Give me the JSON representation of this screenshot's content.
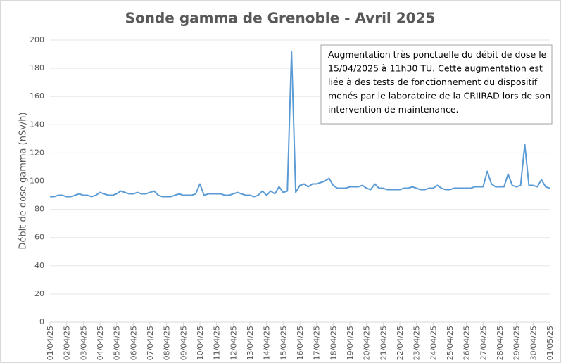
{
  "chart_data": {
    "type": "line",
    "title": "Sonde gamma de Grenoble - Avril 2025",
    "y_label": "Débit de dose gamma (nSv/h)",
    "annotation": [
      "Augmentation très ponctuelle du débit de dose le",
      "15/04/2025  à 11h30 TU. Cette augmentation est",
      "liée à des tests de fonctionnement du dispositif",
      "menés par le laboratoire de la CRIIRAD lors de son",
      "intervention de maintenance."
    ],
    "categories": [
      "01/04/25",
      null,
      null,
      null,
      "02/04/25",
      null,
      null,
      null,
      "03/04/25",
      null,
      null,
      null,
      "04/04/25",
      null,
      null,
      null,
      "05/04/25",
      null,
      null,
      null,
      "06/04/25",
      null,
      null,
      null,
      "07/04/25",
      null,
      null,
      null,
      "08/04/25",
      null,
      null,
      null,
      "09/04/25",
      null,
      null,
      null,
      "10/04/25",
      null,
      null,
      null,
      "11/04/25",
      null,
      null,
      null,
      "12/04/25",
      null,
      null,
      null,
      "13/04/25",
      null,
      null,
      null,
      "14/04/25",
      null,
      null,
      null,
      "15/04/25",
      null,
      null,
      null,
      "16/04/25",
      null,
      null,
      null,
      "17/04/25",
      null,
      null,
      null,
      "18/04/25",
      null,
      null,
      null,
      "19/04/25",
      null,
      null,
      null,
      "20/04/25",
      null,
      null,
      null,
      "21/04/25",
      null,
      null,
      null,
      "22/04/25",
      null,
      null,
      null,
      "23/04/25",
      null,
      null,
      null,
      "24/04/25",
      null,
      null,
      null,
      "25/04/25",
      null,
      null,
      null,
      "26/04/25",
      null,
      null,
      null,
      "27/04/25",
      null,
      null,
      null,
      "28/04/25",
      null,
      null,
      null,
      "29/04/25",
      null,
      null,
      null,
      "30/04/25",
      null,
      null,
      null,
      "01/05/25"
    ],
    "values": [
      89,
      89,
      90,
      90,
      89,
      89,
      90,
      91,
      90,
      90,
      89,
      90,
      92,
      91,
      90,
      90,
      91,
      93,
      92,
      91,
      91,
      92,
      91,
      91,
      92,
      93,
      90,
      89,
      89,
      89,
      90,
      91,
      90,
      90,
      90,
      91,
      98,
      90,
      91,
      91,
      91,
      91,
      90,
      90,
      91,
      92,
      91,
      90,
      90,
      89,
      90,
      93,
      90,
      93,
      91,
      96,
      92,
      93,
      192,
      92,
      97,
      98,
      96,
      98,
      98,
      99,
      100,
      102,
      97,
      95,
      95,
      95,
      96,
      96,
      96,
      97,
      95,
      94,
      98,
      95,
      95,
      94,
      94,
      94,
      94,
      95,
      95,
      96,
      95,
      94,
      94,
      95,
      95,
      97,
      95,
      94,
      94,
      95,
      95,
      95,
      95,
      95,
      96,
      96,
      96,
      107,
      98,
      96,
      96,
      96,
      105,
      97,
      96,
      97,
      126,
      97,
      97,
      96,
      101,
      96,
      95
    ],
    "color": "#5b9bd5",
    "ylim": [
      0,
      200
    ],
    "yticks": [
      0,
      20,
      40,
      60,
      80,
      100,
      120,
      140,
      160,
      180,
      200
    ],
    "grid": true
  }
}
